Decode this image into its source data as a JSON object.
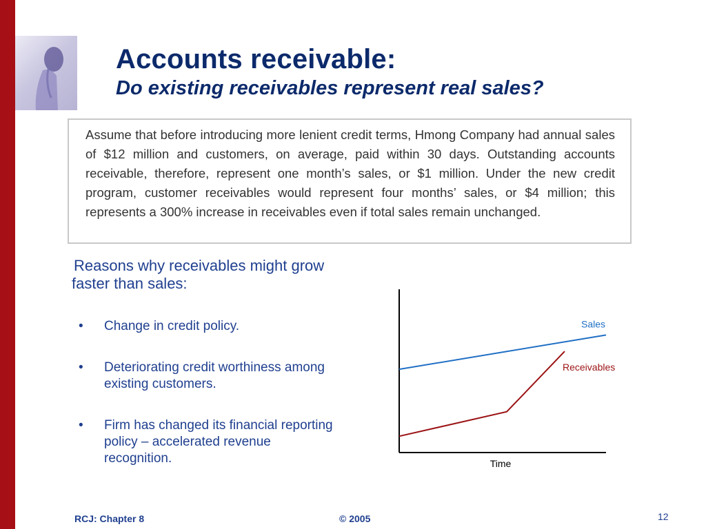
{
  "slide": {
    "title": "Accounts receivable:",
    "subtitle": "Do existing receivables represent real sales?",
    "quote": "Assume that before introducing more lenient credit terms, Hmong Company had annual sales of $12 million and customers, on average, paid within 30 days. Outstanding accounts receivable, therefore, represent one month’s sales, or $1 million. Under the new credit program, customer receivables would represent four months’ sales, or $4 million; this represents a 300% increase in receivables even if total sales remain unchanged.",
    "reasons_heading": "Reasons why receivables might grow faster than sales:",
    "reasons": [
      "Change in credit policy.",
      "Deteriorating credit worthiness among existing customers.",
      "Firm has changed its financial reporting policy – accelerated revenue recognition."
    ]
  },
  "footer": {
    "left": "RCJ: Chapter 8",
    "center": "© 2005",
    "page": "12"
  },
  "colors": {
    "accent_bar": "#a50f15",
    "title": "#0c2a6b",
    "body_text": "#1f3f8f",
    "sales_line": "#1f6fc4",
    "receivables_line": "#9b1214"
  },
  "chart_data": {
    "type": "line",
    "xlabel": "Time",
    "ylabel": "",
    "x": [
      0,
      0.52,
      1
    ],
    "xlim": [
      0,
      1
    ],
    "ylim": [
      0,
      1
    ],
    "series": [
      {
        "name": "Sales",
        "color": "#1f6fc4",
        "points": [
          [
            0,
            0.51
          ],
          [
            1,
            0.72
          ]
        ]
      },
      {
        "name": "Receivables",
        "color": "#9b1214",
        "points": [
          [
            0,
            0.1
          ],
          [
            0.52,
            0.25
          ],
          [
            0.8,
            0.62
          ]
        ]
      }
    ],
    "grid": false
  }
}
